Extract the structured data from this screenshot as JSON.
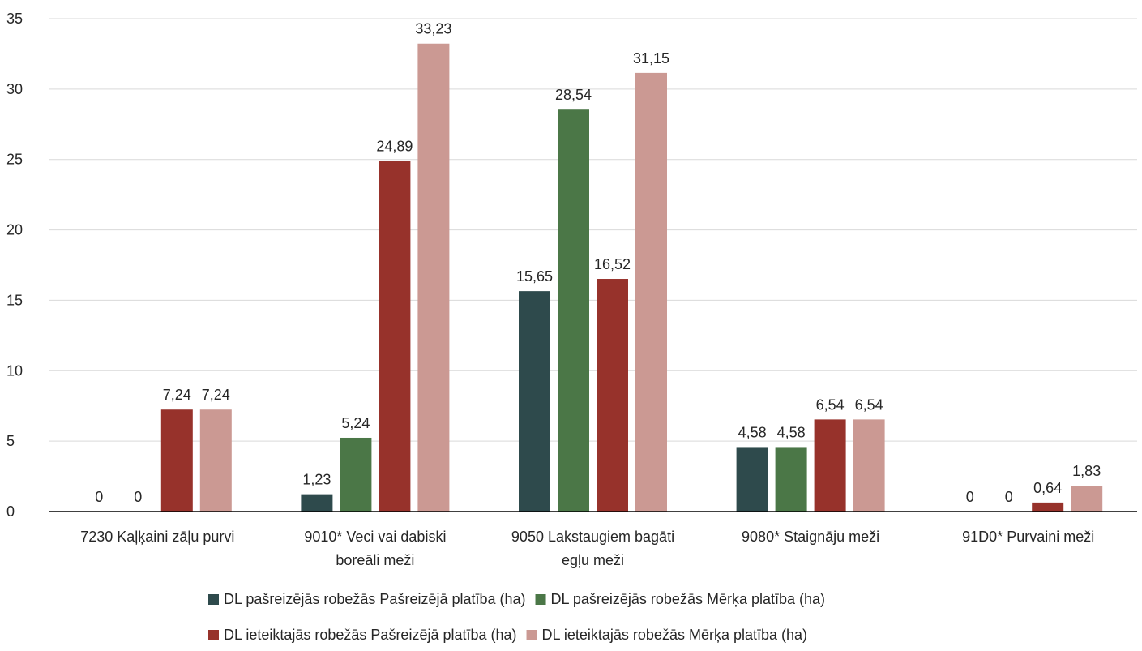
{
  "chart_data": {
    "type": "bar",
    "categories": [
      [
        "7230 Kaļķaini zāļu purvi"
      ],
      [
        "9010* Veci vai dabiski",
        "boreāli meži"
      ],
      [
        "9050 Lakstaugiem bagāti",
        "egļu meži"
      ],
      [
        "9080* Staignāju meži"
      ],
      [
        "91D0* Purvaini meži"
      ]
    ],
    "series": [
      {
        "name": "DL pašreizējās robežās Pašreizējā platība (ha)",
        "color": "#2e4a4c",
        "values": [
          0,
          1.23,
          15.65,
          4.58,
          0
        ],
        "labels": [
          "0",
          "1,23",
          "15,65",
          "4,58",
          "0"
        ]
      },
      {
        "name": "DL pašreizējās robežās Mērķa platība (ha)",
        "color": "#4b7747",
        "values": [
          0,
          5.24,
          28.54,
          4.58,
          0
        ],
        "labels": [
          "0",
          "5,24",
          "28,54",
          "4,58",
          "0"
        ]
      },
      {
        "name": "DL ieteiktajās robežās Pašreizējā platība (ha)",
        "color": "#97322b",
        "values": [
          7.24,
          24.89,
          16.52,
          6.54,
          0.64
        ],
        "labels": [
          "7,24",
          "24,89",
          "16,52",
          "6,54",
          "0,64"
        ]
      },
      {
        "name": "DL ieteiktajās robežās Mērķa platība (ha)",
        "color": "#cb9993",
        "values": [
          7.24,
          33.23,
          31.15,
          6.54,
          1.83
        ],
        "labels": [
          "7,24",
          "33,23",
          "31,15",
          "6,54",
          "1,83"
        ]
      }
    ],
    "ylim": [
      0,
      35
    ],
    "yticks": [
      0,
      5,
      10,
      15,
      20,
      25,
      30,
      35
    ],
    "grid": true,
    "legend": "bottom",
    "title": "",
    "xlabel": "",
    "ylabel": ""
  }
}
